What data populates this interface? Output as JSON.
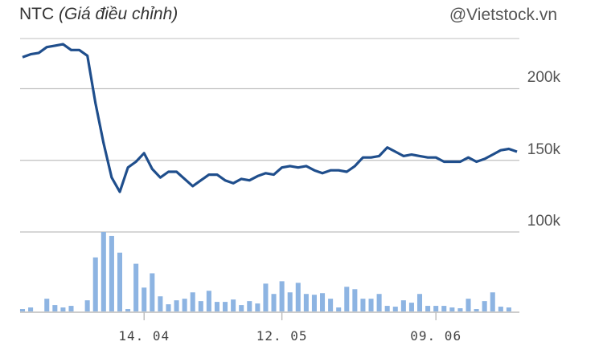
{
  "chart_data": {
    "type": "line",
    "title": "NTC",
    "subtitle": "(Giá điều chỉnh)",
    "source": "@Vietstock.vn",
    "y_ticks": [
      "200k",
      "150k",
      "100k"
    ],
    "y_tick_values": [
      200000,
      150000,
      100000
    ],
    "ylim": [
      100000,
      235000
    ],
    "x_ticks": [
      {
        "label": "14. 04",
        "index": 15
      },
      {
        "label": "12. 05",
        "index": 32
      },
      {
        "label": "09. 06",
        "index": 51
      }
    ],
    "grid": true,
    "legend": "none",
    "colors": {
      "price_line": "#1f4e8c",
      "volume_bar": "#8db4e2",
      "grid": "#bfbfbf"
    },
    "series": [
      {
        "type": "line",
        "values": [
          222000,
          224000,
          225000,
          229000,
          230000,
          231000,
          227000,
          227000,
          223000,
          190000,
          162000,
          138000,
          128000,
          145000,
          149000,
          155000,
          144000,
          138000,
          142000,
          142000,
          137000,
          132000,
          136000,
          140000,
          140000,
          136000,
          134000,
          137000,
          136000,
          139000,
          141000,
          140000,
          145000,
          146000,
          145000,
          146000,
          143000,
          141000,
          143000,
          143000,
          142000,
          146000,
          152000,
          152000,
          153000,
          159000,
          156000,
          153000,
          154000,
          153000,
          152000,
          152000,
          149000,
          149000,
          149000,
          152000,
          149000,
          151000,
          154000,
          157000,
          158000,
          156000
        ]
      },
      {
        "type": "bar",
        "values": [
          3,
          5,
          0,
          16,
          8,
          5,
          7,
          0,
          14,
          68,
          100,
          95,
          74,
          3,
          60,
          30,
          48,
          19,
          9,
          14,
          16,
          24,
          13,
          26,
          12,
          12,
          15,
          8,
          13,
          10,
          35,
          22,
          38,
          24,
          36,
          22,
          21,
          23,
          16,
          5,
          31,
          28,
          16,
          16,
          22,
          7,
          6,
          14,
          11,
          22,
          7,
          7,
          7,
          5,
          4,
          16,
          3,
          13,
          24,
          6,
          5,
          0
        ]
      }
    ]
  }
}
